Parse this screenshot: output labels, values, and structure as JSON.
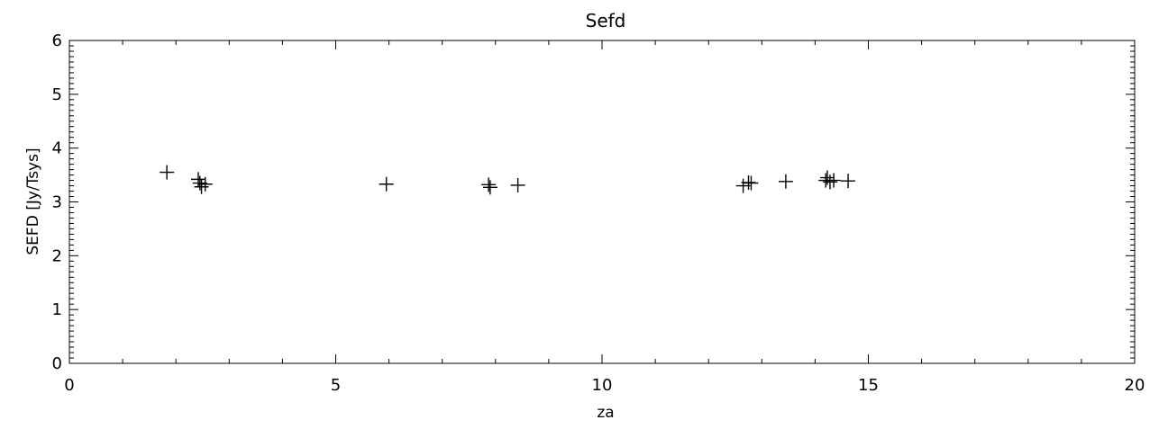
{
  "chart_data": {
    "type": "scatter",
    "title": "Sefd",
    "xlabel": "za",
    "ylabel": "SEFD [Jy/Tsys]",
    "xlim": [
      0,
      20
    ],
    "ylim": [
      0,
      6
    ],
    "x_ticks": [
      0,
      5,
      10,
      15,
      20
    ],
    "x_tick_labels": [
      "0",
      "5",
      "10",
      "15",
      "20"
    ],
    "y_ticks": [
      0,
      1,
      2,
      3,
      4,
      5,
      6
    ],
    "y_tick_labels": [
      "0",
      "1",
      "2",
      "3",
      "4",
      "5",
      "6"
    ],
    "x_minor_step": 1,
    "y_minor_step": 0.1,
    "grid": false,
    "marker": "plus",
    "points": [
      {
        "x": 1.83,
        "y": 3.55
      },
      {
        "x": 2.42,
        "y": 3.42
      },
      {
        "x": 2.45,
        "y": 3.35
      },
      {
        "x": 2.48,
        "y": 3.28
      },
      {
        "x": 2.55,
        "y": 3.33
      },
      {
        "x": 5.95,
        "y": 3.33
      },
      {
        "x": 7.87,
        "y": 3.32
      },
      {
        "x": 7.9,
        "y": 3.27
      },
      {
        "x": 8.42,
        "y": 3.31
      },
      {
        "x": 12.65,
        "y": 3.3
      },
      {
        "x": 12.75,
        "y": 3.36
      },
      {
        "x": 12.8,
        "y": 3.35
      },
      {
        "x": 13.45,
        "y": 3.38
      },
      {
        "x": 14.2,
        "y": 3.4
      },
      {
        "x": 14.23,
        "y": 3.45
      },
      {
        "x": 14.28,
        "y": 3.37
      },
      {
        "x": 14.35,
        "y": 3.4
      },
      {
        "x": 14.62,
        "y": 3.39
      }
    ]
  }
}
